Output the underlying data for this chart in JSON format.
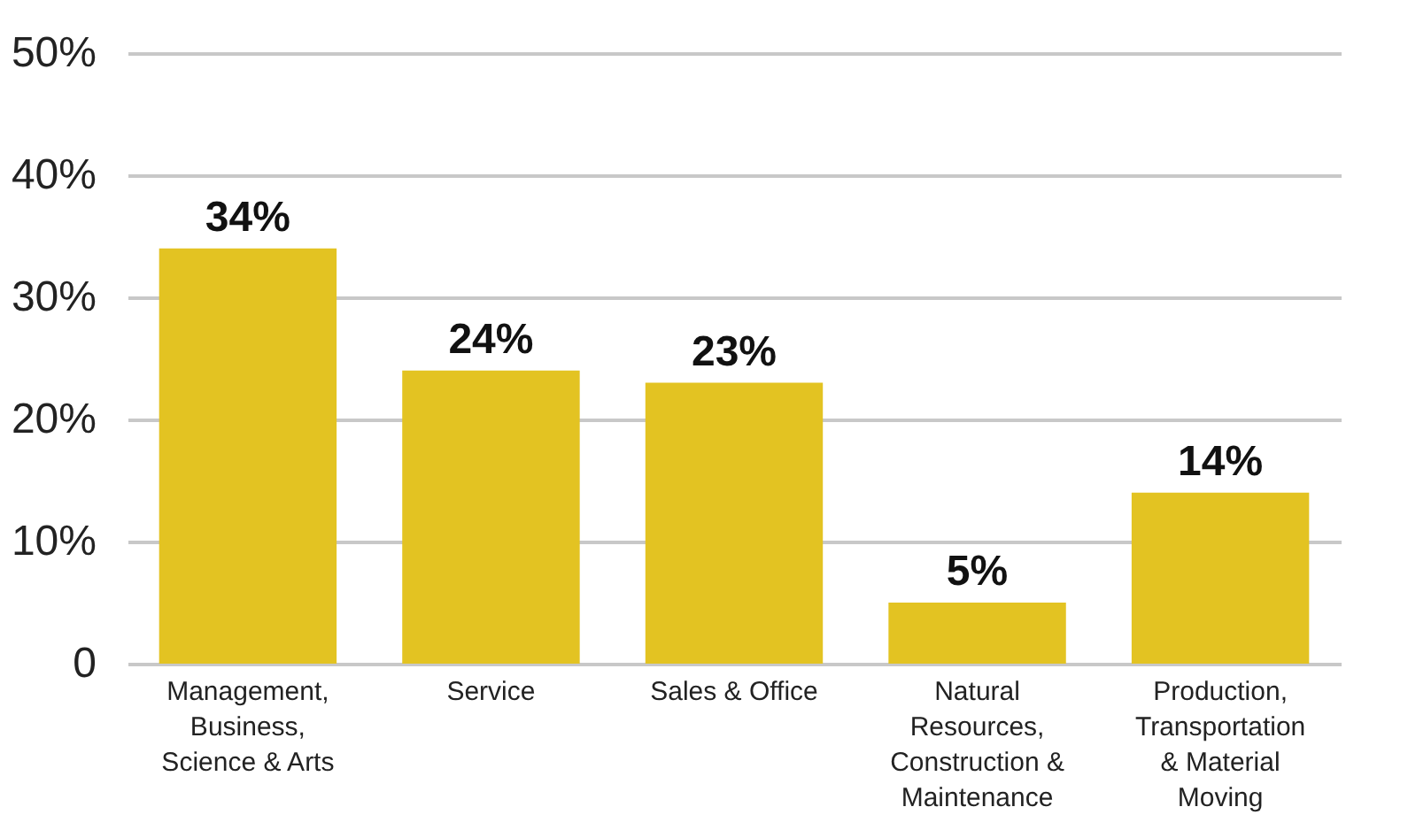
{
  "chart_data": {
    "type": "bar",
    "categories": [
      "Management, Business, Science & Arts",
      "Service",
      "Sales & Office",
      "Natural Resources, Construction & Maintenance",
      "Production, Transportation & Material Moving"
    ],
    "values": [
      34,
      24,
      23,
      5,
      14
    ],
    "value_labels": [
      "34%",
      "24%",
      "23%",
      "5%",
      "14%"
    ],
    "color": "#e3c322",
    "ylim": [
      0,
      50
    ],
    "yticks": [
      0,
      {
        "value": 10,
        "label": "10%"
      },
      {
        "value": 20,
        "label": "20%"
      },
      {
        "value": 30,
        "label": "30%"
      },
      {
        "value": 40,
        "label": "40%"
      },
      {
        "value": 50,
        "label": "50%"
      }
    ],
    "grid": "y"
  }
}
